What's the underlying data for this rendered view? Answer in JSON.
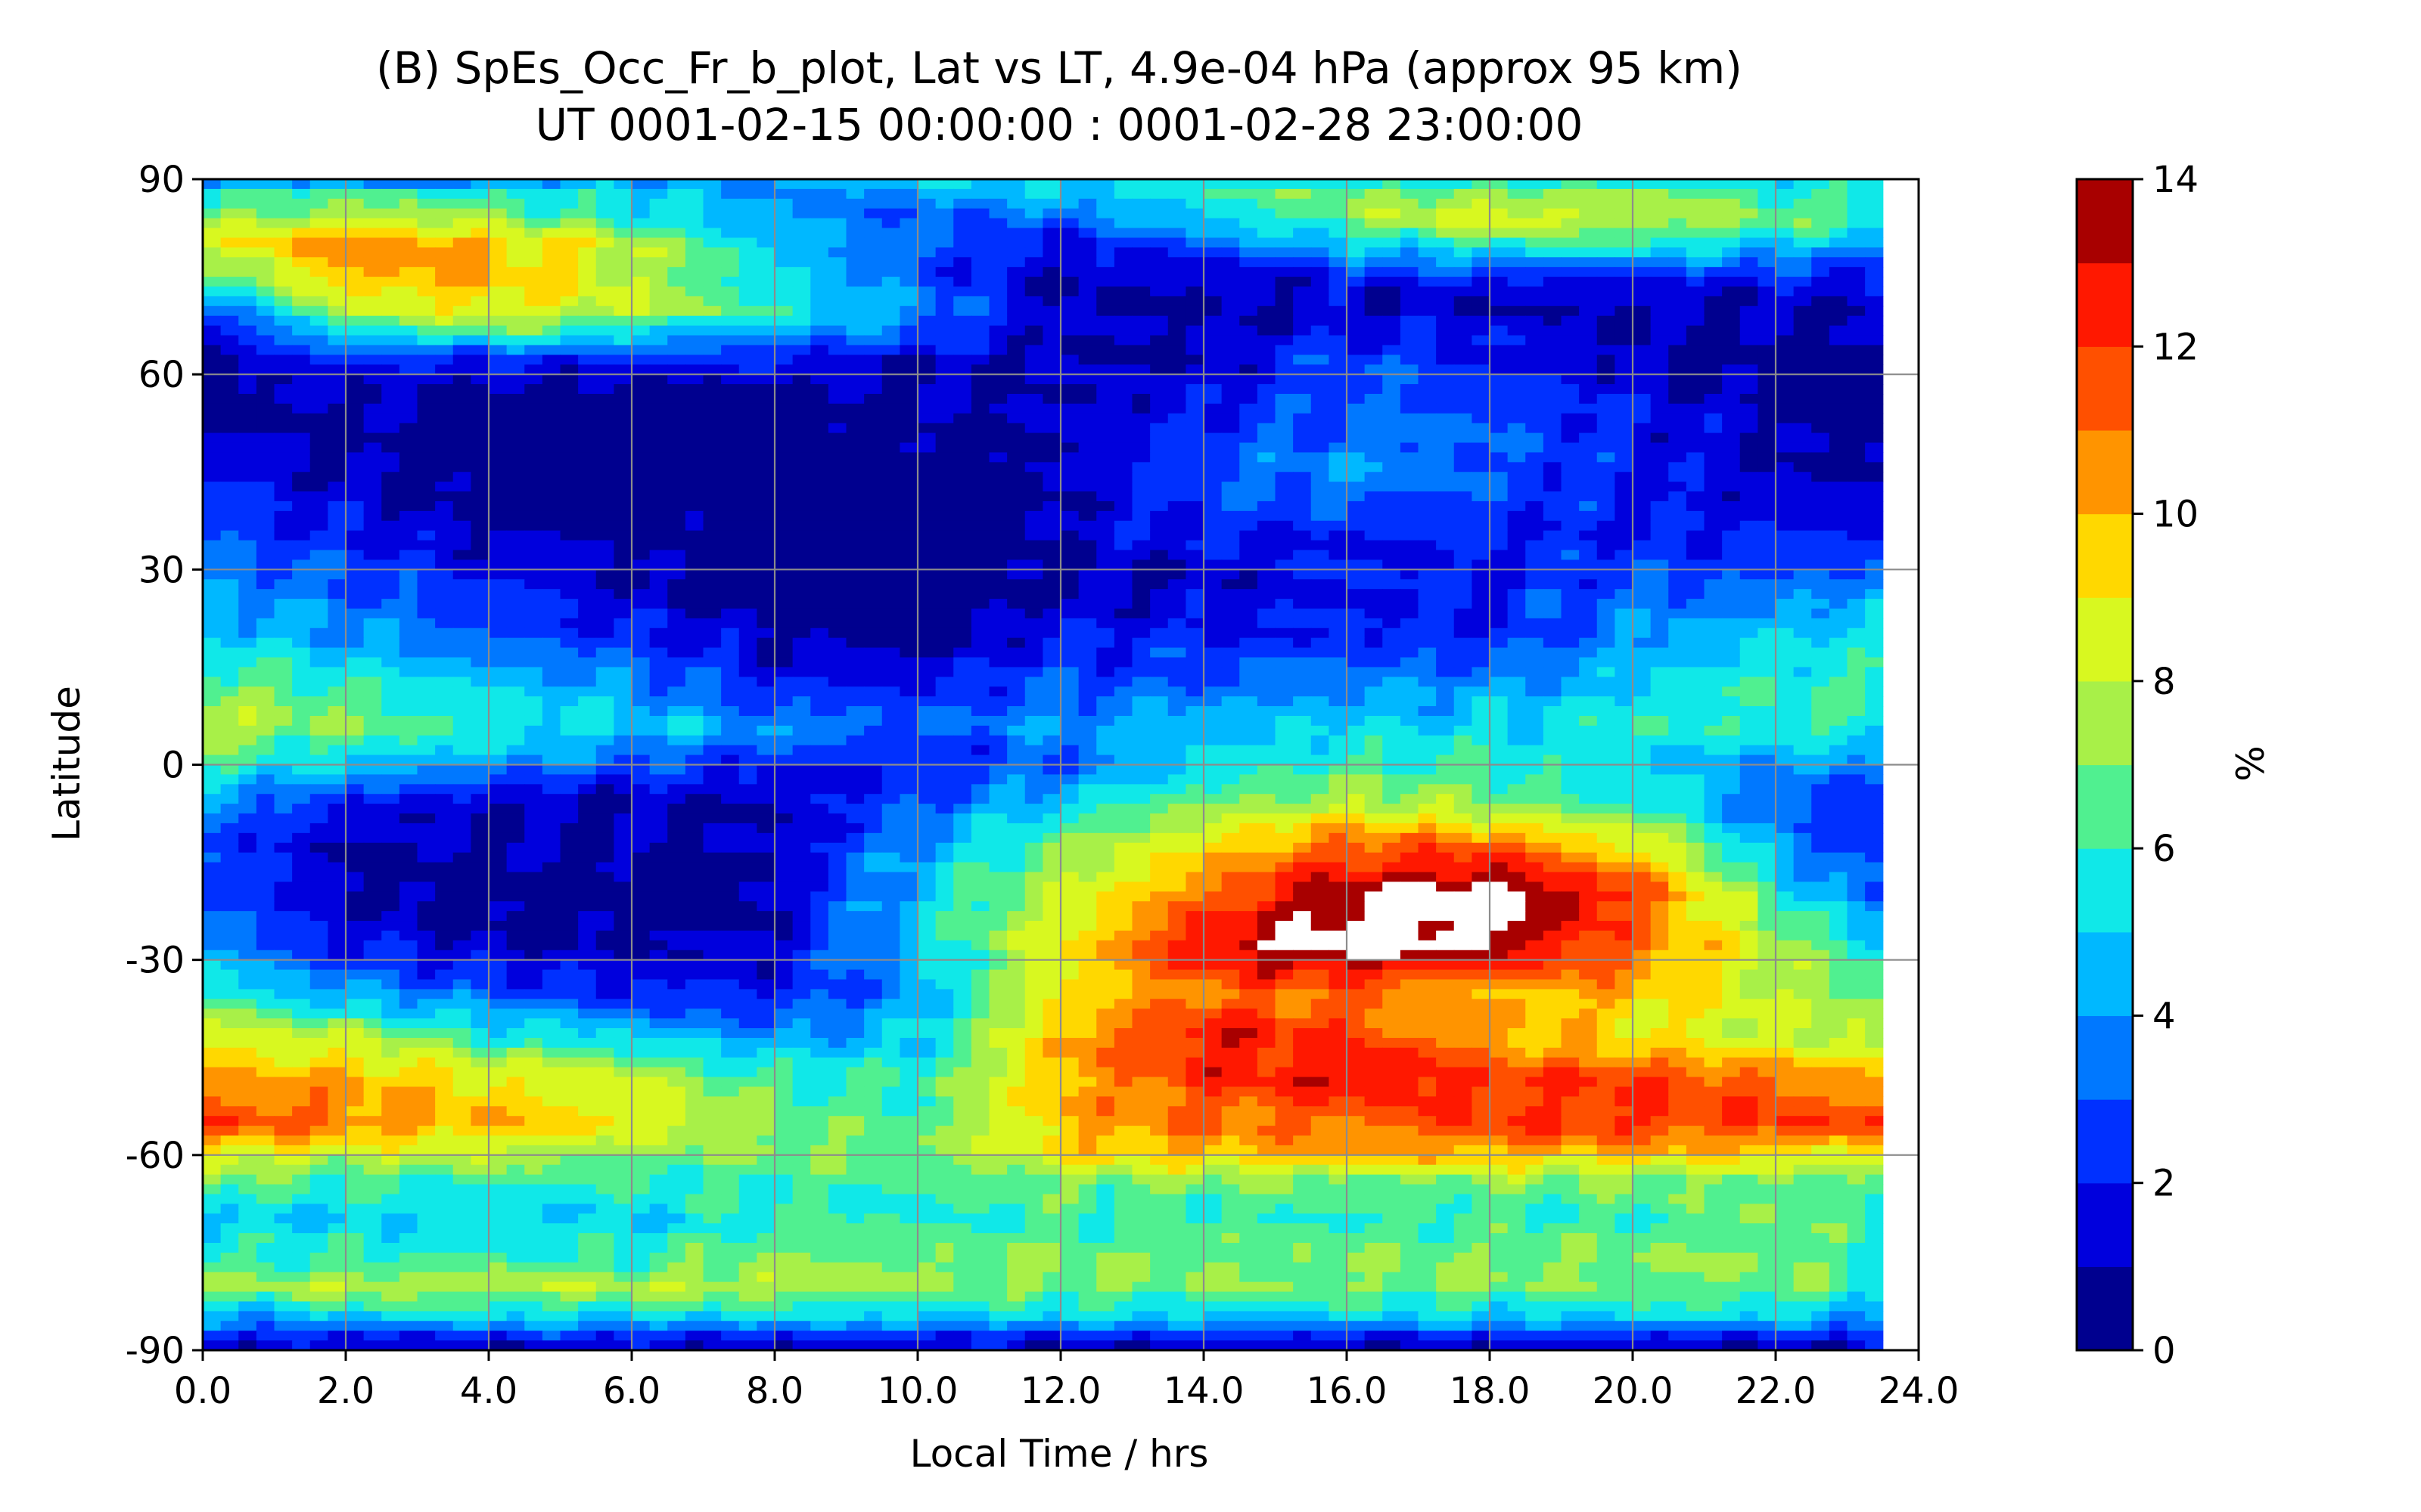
{
  "chart_data": {
    "type": "heatmap",
    "subtype": "filled-contour",
    "title_line1": "(B) SpEs_Occ_Fr_b_plot, Lat vs LT, 4.9e-04 hPa (approx 95 km)",
    "title_line2": "UT 0001-02-15 00:00:00 : 0001-02-28 23:00:00",
    "xlabel": "Local Time / hrs",
    "ylabel": "Latitude",
    "colorbar_label": "%",
    "xlim": [
      0,
      24
    ],
    "ylim": [
      -90,
      90
    ],
    "x_ticks": [
      0,
      2,
      4,
      6,
      8,
      10,
      12,
      14,
      16,
      18,
      20,
      22,
      24
    ],
    "x_tick_labels": [
      "0.0",
      "2.0",
      "4.0",
      "6.0",
      "8.0",
      "10.0",
      "12.0",
      "14.0",
      "16.0",
      "18.0",
      "20.0",
      "22.0",
      "24.0"
    ],
    "y_ticks": [
      90,
      60,
      30,
      0,
      -30,
      -60,
      -90
    ],
    "y_tick_labels": [
      "90",
      "60",
      "30",
      "0",
      "-30",
      "-60",
      "-90"
    ],
    "data_x_max": 23.5,
    "grid": true,
    "colorbar": {
      "range": [
        0,
        14
      ],
      "levels": [
        0,
        1,
        2,
        3,
        4,
        5,
        6,
        7,
        8,
        9,
        10,
        11,
        12,
        13,
        14
      ],
      "ticks": [
        0,
        2,
        4,
        6,
        8,
        10,
        12,
        14
      ],
      "tick_labels": [
        "0",
        "2",
        "4",
        "6",
        "8",
        "10",
        "12",
        "14"
      ],
      "colors": [
        "#00008f",
        "#0000dd",
        "#0030ff",
        "#0078ff",
        "#00b8ff",
        "#10e8e8",
        "#50f090",
        "#a8f048",
        "#d8f820",
        "#ffd800",
        "#ff9400",
        "#ff5000",
        "#ff1800",
        "#a80000"
      ],
      "above_max_color": "#ffffff"
    },
    "lat_profile": {
      "lat": [
        90,
        88,
        84,
        80,
        75,
        70,
        66,
        62,
        55,
        45,
        35,
        28,
        20,
        12,
        6,
        0,
        -6,
        -12,
        -20,
        -28,
        -35,
        -42,
        -48,
        -55,
        -60,
        -64,
        -70,
        -76,
        -80,
        -85,
        -88,
        -90
      ],
      "lt": [
        0,
        2,
        4,
        6,
        8,
        10,
        12,
        14,
        16,
        18,
        20,
        22,
        23.5
      ],
      "values": [
        [
          3,
          3,
          3,
          4,
          4,
          5,
          5,
          5,
          5,
          5,
          5,
          5,
          5
        ],
        [
          6,
          6,
          6,
          5,
          4,
          4,
          5,
          6,
          7,
          7,
          7,
          6,
          6
        ],
        [
          7,
          8,
          7,
          6,
          4,
          3,
          3,
          5,
          7,
          9,
          8,
          7,
          6
        ],
        [
          8,
          11,
          10,
          8,
          5,
          3,
          2,
          3,
          5,
          6,
          6,
          5,
          4
        ],
        [
          6,
          10,
          10,
          8,
          5,
          3,
          1,
          1,
          2,
          2,
          2,
          2,
          2
        ],
        [
          3,
          8,
          9,
          8,
          6,
          4,
          1,
          1,
          1,
          1,
          1,
          1,
          1
        ],
        [
          1,
          5,
          6,
          5,
          4,
          3,
          1,
          1,
          2,
          2,
          1,
          1,
          1
        ],
        [
          1,
          2,
          2,
          2,
          2,
          1,
          1,
          1,
          3,
          2,
          1,
          0,
          0
        ],
        [
          0,
          1,
          0,
          0,
          0,
          1,
          1,
          2,
          3,
          3,
          2,
          1,
          0
        ],
        [
          2,
          1,
          0,
          0,
          0,
          0,
          1,
          3,
          4,
          3,
          2,
          1,
          1
        ],
        [
          3,
          2,
          1,
          1,
          0,
          0,
          1,
          2,
          2,
          2,
          2,
          2,
          2
        ],
        [
          4,
          3,
          2,
          1,
          0,
          0,
          1,
          1,
          2,
          2,
          3,
          3,
          4
        ],
        [
          5,
          4,
          3,
          2,
          1,
          0,
          2,
          2,
          2,
          2,
          4,
          5,
          5
        ],
        [
          7,
          6,
          5,
          4,
          2,
          2,
          3,
          3,
          4,
          4,
          5,
          6,
          6
        ],
        [
          8,
          7,
          6,
          5,
          4,
          3,
          4,
          5,
          5,
          5,
          6,
          6,
          6
        ],
        [
          6,
          5,
          4,
          3,
          2,
          2,
          3,
          5,
          6,
          6,
          5,
          4,
          4
        ],
        [
          4,
          2,
          1,
          1,
          1,
          3,
          5,
          7,
          8,
          7,
          6,
          3,
          2
        ],
        [
          3,
          1,
          1,
          1,
          1,
          4,
          7,
          9,
          11,
          11,
          9,
          4,
          2
        ],
        [
          3,
          1,
          0,
          0,
          1,
          5,
          8,
          11,
          14,
          15,
          12,
          6,
          3
        ],
        [
          4,
          2,
          1,
          1,
          1,
          5,
          9,
          13,
          15,
          14,
          11,
          8,
          5
        ],
        [
          6,
          4,
          3,
          2,
          2,
          4,
          9,
          11,
          11,
          10,
          10,
          8,
          7
        ],
        [
          9,
          8,
          6,
          5,
          4,
          5,
          10,
          13,
          12,
          10,
          9,
          8,
          8
        ],
        [
          10,
          10,
          9,
          8,
          6,
          6,
          10,
          12,
          13,
          12,
          12,
          11,
          10
        ],
        [
          12,
          11,
          10,
          9,
          7,
          6,
          10,
          11,
          11,
          12,
          12,
          12,
          12
        ],
        [
          9,
          8,
          8,
          7,
          7,
          7,
          9,
          10,
          10,
          10,
          10,
          9,
          9
        ],
        [
          7,
          6,
          6,
          6,
          6,
          6,
          7,
          7,
          7,
          7,
          7,
          7,
          6
        ],
        [
          5,
          5,
          5,
          5,
          6,
          6,
          6,
          6,
          6,
          6,
          6,
          7,
          6
        ],
        [
          6,
          6,
          6,
          6,
          7,
          7,
          7,
          7,
          7,
          7,
          7,
          7,
          6
        ],
        [
          7,
          8,
          8,
          8,
          8,
          7,
          7,
          7,
          7,
          7,
          7,
          7,
          6
        ],
        [
          4,
          5,
          5,
          5,
          5,
          5,
          5,
          5,
          5,
          5,
          5,
          5,
          4
        ],
        [
          2,
          2,
          2,
          2,
          2,
          2,
          2,
          2,
          2,
          2,
          2,
          2,
          2
        ],
        [
          1,
          1,
          1,
          1,
          1,
          1,
          1,
          1,
          1,
          1,
          1,
          1,
          1
        ]
      ]
    }
  }
}
